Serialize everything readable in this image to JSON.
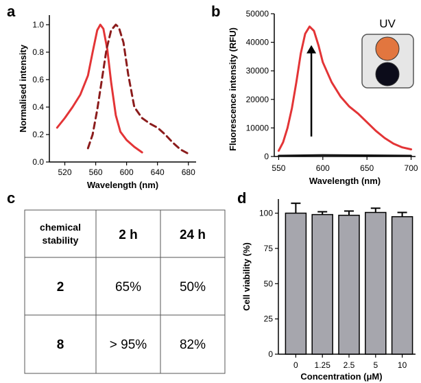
{
  "panels": {
    "a": "a",
    "b": "b",
    "c": "c",
    "d": "d"
  },
  "colors": {
    "excitation": "#e33436",
    "emission": "#8b1c1c",
    "fluorescence": "#e33436",
    "baseline": "#111111",
    "bar": "#a6a6ad",
    "vial_top": "#e2763f",
    "vial_bottom": "#0c0c1a"
  },
  "inset": {
    "label": "UV"
  },
  "chart_data": [
    {
      "id": "a",
      "type": "line",
      "xlabel": "Wavelength (nm)",
      "ylabel": "Normalised intensity",
      "xlim": [
        500,
        690
      ],
      "ylim": [
        0,
        1.0
      ],
      "xticks": [
        "520",
        "560",
        "600",
        "640",
        "680"
      ],
      "yticks": [
        "0.0",
        "0.2",
        "0.4",
        "0.6",
        "0.8",
        "1.0"
      ],
      "series": [
        {
          "style": "solid",
          "x": [
            510,
            520,
            530,
            540,
            550,
            556,
            562,
            566,
            570,
            575,
            580,
            586,
            592,
            600,
            610,
            620
          ],
          "y": [
            0.25,
            0.32,
            0.4,
            0.49,
            0.63,
            0.8,
            0.96,
            1.0,
            0.97,
            0.82,
            0.58,
            0.34,
            0.22,
            0.16,
            0.11,
            0.07
          ]
        },
        {
          "style": "dashed",
          "x": [
            550,
            556,
            562,
            568,
            574,
            580,
            586,
            590,
            596,
            602,
            610,
            620,
            630,
            640,
            650,
            660,
            670,
            680
          ],
          "y": [
            0.1,
            0.2,
            0.38,
            0.6,
            0.82,
            0.96,
            1.0,
            0.98,
            0.87,
            0.64,
            0.4,
            0.32,
            0.28,
            0.25,
            0.2,
            0.14,
            0.09,
            0.06
          ]
        }
      ]
    },
    {
      "id": "b",
      "type": "line",
      "xlabel": "Wavelength (nm)",
      "ylabel": "Fluorescence intensity (RFU)",
      "xlim": [
        545,
        705
      ],
      "ylim": [
        0,
        50000
      ],
      "xticks": [
        "550",
        "600",
        "650",
        "700"
      ],
      "yticks": [
        "0",
        "10000",
        "20000",
        "30000",
        "40000",
        "50000"
      ],
      "series": [
        {
          "style": "solid",
          "x": [
            550,
            555,
            560,
            565,
            570,
            575,
            580,
            585,
            590,
            595,
            600,
            610,
            620,
            630,
            640,
            650,
            660,
            670,
            680,
            690,
            700
          ],
          "y": [
            2000,
            5000,
            10000,
            17000,
            26000,
            36000,
            43000,
            45500,
            44000,
            39000,
            33000,
            26000,
            21000,
            17500,
            15000,
            12000,
            9000,
            6500,
            4500,
            3200,
            2500
          ]
        },
        {
          "style": "solid",
          "x": [
            550,
            600,
            650,
            700
          ],
          "y": [
            300,
            500,
            400,
            300
          ]
        }
      ],
      "annotations": [
        {
          "type": "arrow",
          "x": 587,
          "from": 7000,
          "to": 39000
        }
      ]
    },
    {
      "id": "c",
      "type": "table",
      "columns": [
        "chemical\nstability",
        "2 h",
        "24 h"
      ],
      "rows": [
        [
          "2",
          "65%",
          "50%"
        ],
        [
          "8",
          "> 95%",
          "82%"
        ]
      ]
    },
    {
      "id": "d",
      "type": "bar",
      "xlabel": "Concentration (μM)",
      "ylabel": "Cell viability (%)",
      "categories": [
        "0",
        "1.25",
        "2.5",
        "5",
        "10"
      ],
      "values": [
        100,
        99,
        98.5,
        100.5,
        97.5
      ],
      "errors": [
        7,
        2,
        3,
        3,
        3
      ],
      "ylim": [
        0,
        110
      ],
      "yticks": [
        "0",
        "25",
        "50",
        "75",
        "100"
      ]
    }
  ]
}
